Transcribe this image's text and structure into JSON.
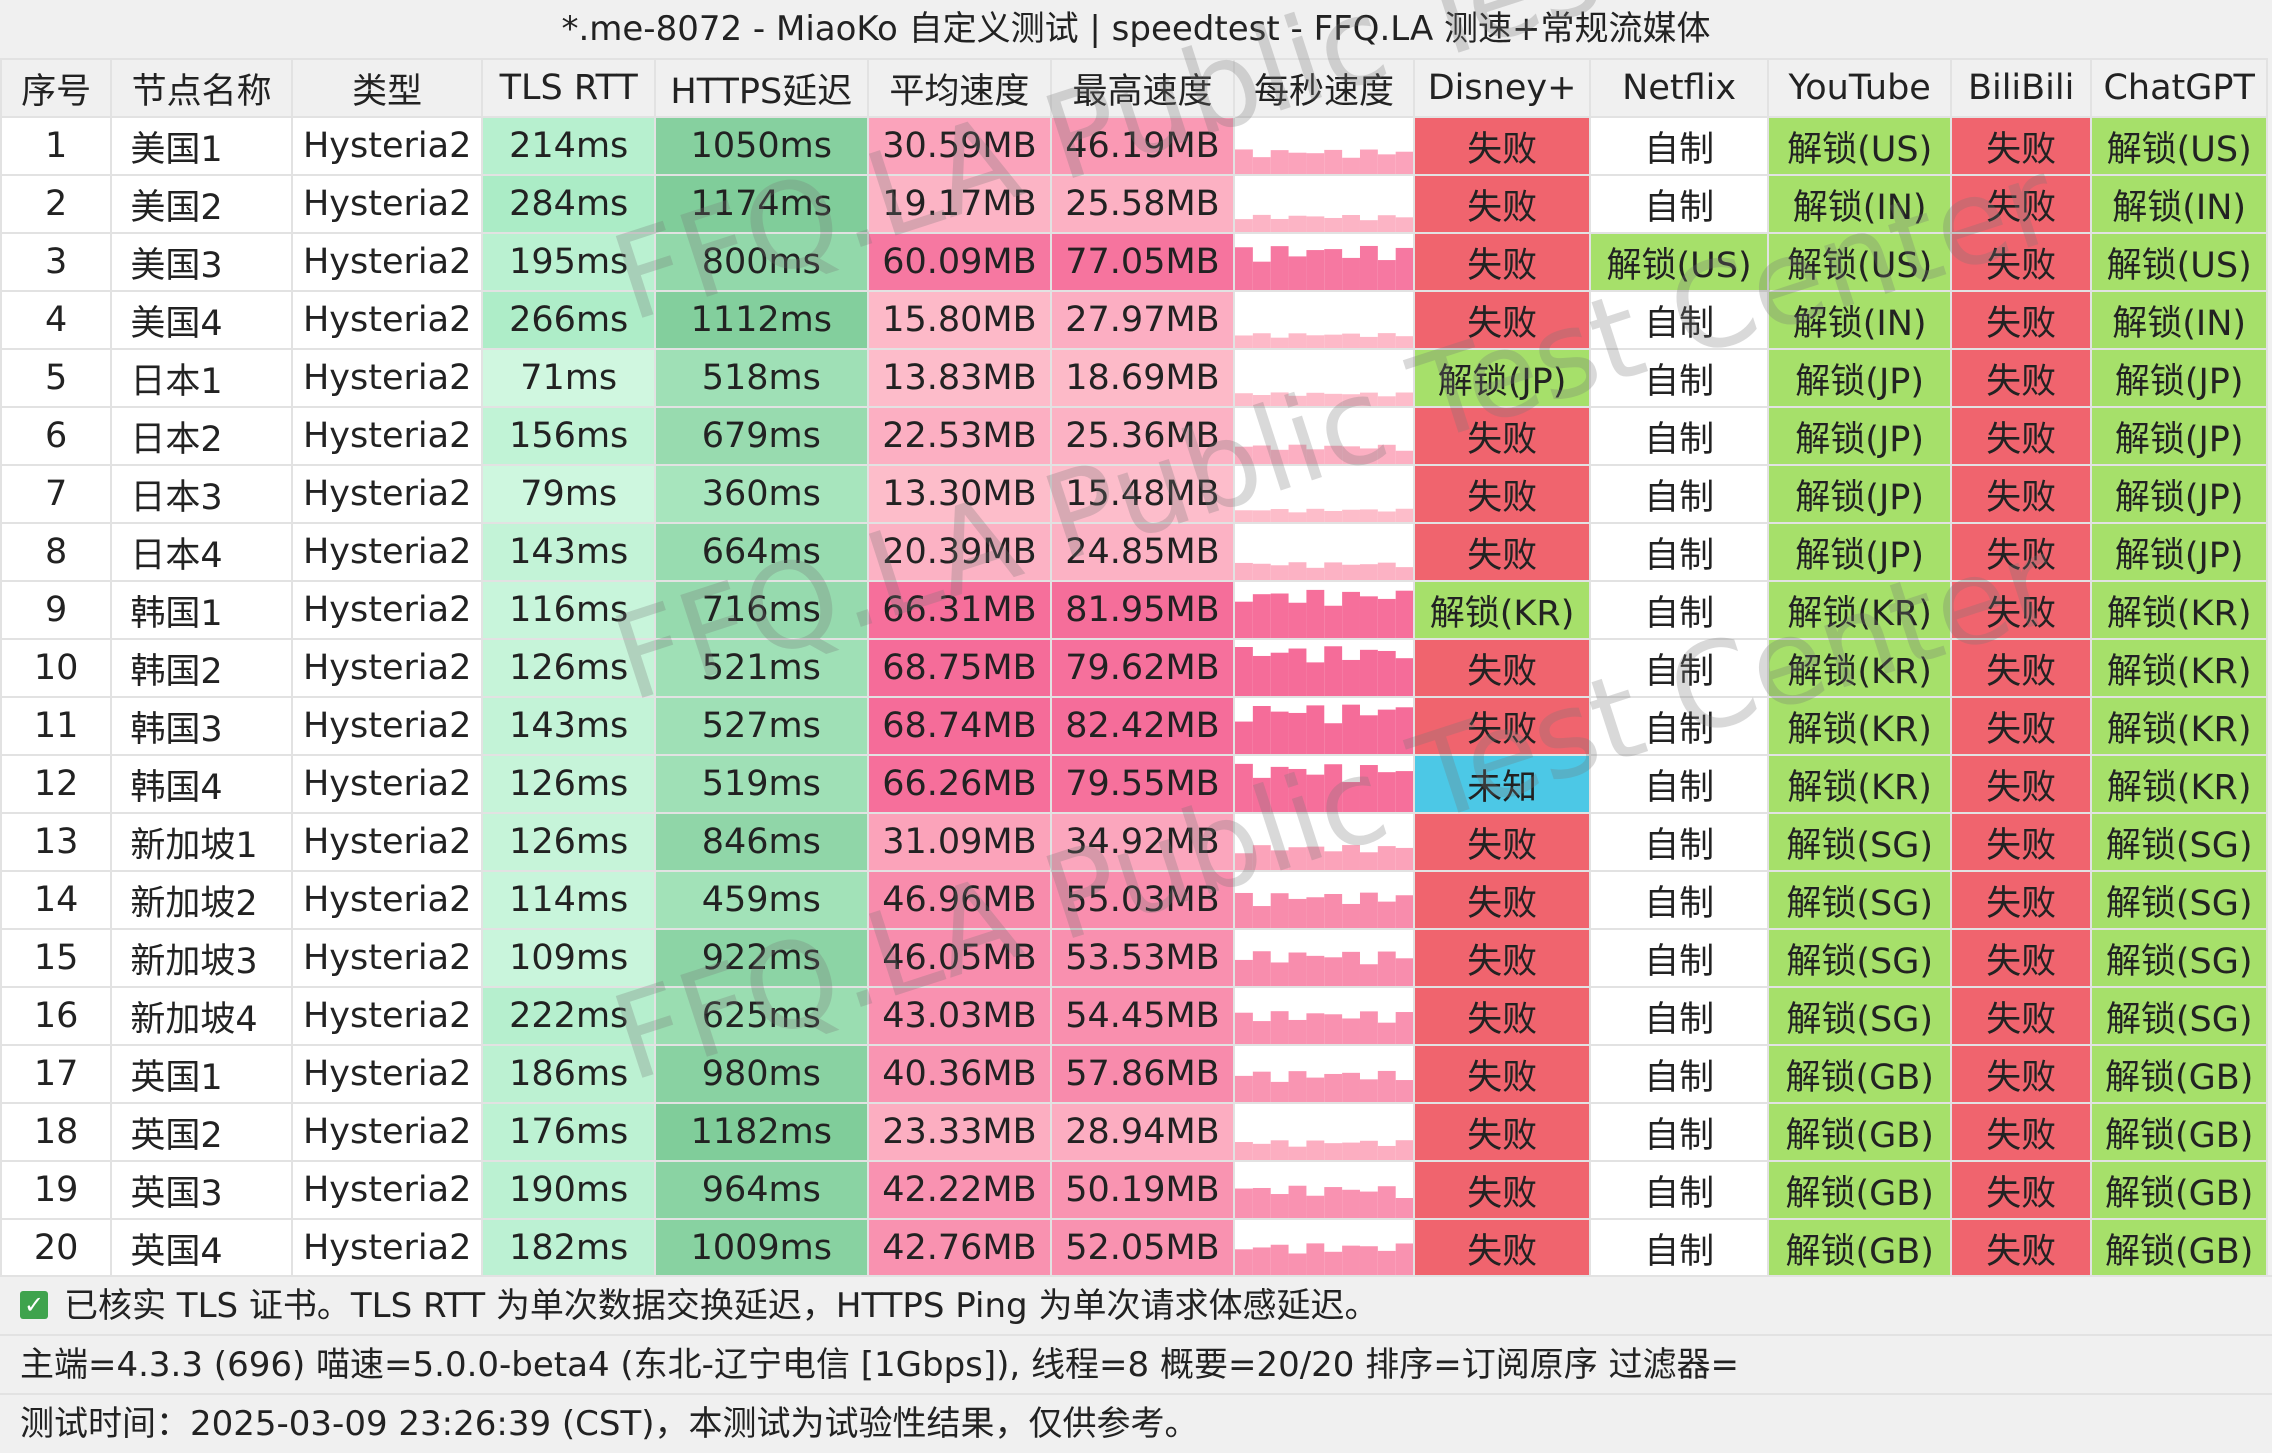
{
  "window": {
    "title": "*.me-8072 - MiaoKo 自定义测试 | speedtest - FFQ.LA 测速+常规流媒体"
  },
  "columns": [
    "序号",
    "节点名称",
    "类型",
    "TLS RTT",
    "HTTPS延迟",
    "平均速度",
    "最高速度",
    "每秒速度",
    "Disney+",
    "Netflix",
    "YouTube",
    "BiliBili",
    "ChatGPT"
  ],
  "rows": [
    {
      "idx": "1",
      "name": "美国1",
      "type": "Hysteria2",
      "rtt": "214ms",
      "https": "1050ms",
      "avg": "30.59MB",
      "max": "46.19MB",
      "disney": "失败",
      "netflix": "自制",
      "youtube": "解锁(US)",
      "bili": "失败",
      "gpt": "解锁(US)"
    },
    {
      "idx": "2",
      "name": "美国2",
      "type": "Hysteria2",
      "rtt": "284ms",
      "https": "1174ms",
      "avg": "19.17MB",
      "max": "25.58MB",
      "disney": "失败",
      "netflix": "自制",
      "youtube": "解锁(IN)",
      "bili": "失败",
      "gpt": "解锁(IN)"
    },
    {
      "idx": "3",
      "name": "美国3",
      "type": "Hysteria2",
      "rtt": "195ms",
      "https": "800ms",
      "avg": "60.09MB",
      "max": "77.05MB",
      "disney": "失败",
      "netflix": "解锁(US)",
      "youtube": "解锁(US)",
      "bili": "失败",
      "gpt": "解锁(US)"
    },
    {
      "idx": "4",
      "name": "美国4",
      "type": "Hysteria2",
      "rtt": "266ms",
      "https": "1112ms",
      "avg": "15.80MB",
      "max": "27.97MB",
      "disney": "失败",
      "netflix": "自制",
      "youtube": "解锁(IN)",
      "bili": "失败",
      "gpt": "解锁(IN)"
    },
    {
      "idx": "5",
      "name": "日本1",
      "type": "Hysteria2",
      "rtt": "71ms",
      "https": "518ms",
      "avg": "13.83MB",
      "max": "18.69MB",
      "disney": "解锁(JP)",
      "netflix": "自制",
      "youtube": "解锁(JP)",
      "bili": "失败",
      "gpt": "解锁(JP)"
    },
    {
      "idx": "6",
      "name": "日本2",
      "type": "Hysteria2",
      "rtt": "156ms",
      "https": "679ms",
      "avg": "22.53MB",
      "max": "25.36MB",
      "disney": "失败",
      "netflix": "自制",
      "youtube": "解锁(JP)",
      "bili": "失败",
      "gpt": "解锁(JP)"
    },
    {
      "idx": "7",
      "name": "日本3",
      "type": "Hysteria2",
      "rtt": "79ms",
      "https": "360ms",
      "avg": "13.30MB",
      "max": "15.48MB",
      "disney": "失败",
      "netflix": "自制",
      "youtube": "解锁(JP)",
      "bili": "失败",
      "gpt": "解锁(JP)"
    },
    {
      "idx": "8",
      "name": "日本4",
      "type": "Hysteria2",
      "rtt": "143ms",
      "https": "664ms",
      "avg": "20.39MB",
      "max": "24.85MB",
      "disney": "失败",
      "netflix": "自制",
      "youtube": "解锁(JP)",
      "bili": "失败",
      "gpt": "解锁(JP)"
    },
    {
      "idx": "9",
      "name": "韩国1",
      "type": "Hysteria2",
      "rtt": "116ms",
      "https": "716ms",
      "avg": "66.31MB",
      "max": "81.95MB",
      "disney": "解锁(KR)",
      "netflix": "自制",
      "youtube": "解锁(KR)",
      "bili": "失败",
      "gpt": "解锁(KR)"
    },
    {
      "idx": "10",
      "name": "韩国2",
      "type": "Hysteria2",
      "rtt": "126ms",
      "https": "521ms",
      "avg": "68.75MB",
      "max": "79.62MB",
      "disney": "失败",
      "netflix": "自制",
      "youtube": "解锁(KR)",
      "bili": "失败",
      "gpt": "解锁(KR)"
    },
    {
      "idx": "11",
      "name": "韩国3",
      "type": "Hysteria2",
      "rtt": "143ms",
      "https": "527ms",
      "avg": "68.74MB",
      "max": "82.42MB",
      "disney": "失败",
      "netflix": "自制",
      "youtube": "解锁(KR)",
      "bili": "失败",
      "gpt": "解锁(KR)"
    },
    {
      "idx": "12",
      "name": "韩国4",
      "type": "Hysteria2",
      "rtt": "126ms",
      "https": "519ms",
      "avg": "66.26MB",
      "max": "79.55MB",
      "disney": "未知",
      "netflix": "自制",
      "youtube": "解锁(KR)",
      "bili": "失败",
      "gpt": "解锁(KR)"
    },
    {
      "idx": "13",
      "name": "新加坡1",
      "type": "Hysteria2",
      "rtt": "126ms",
      "https": "846ms",
      "avg": "31.09MB",
      "max": "34.92MB",
      "disney": "失败",
      "netflix": "自制",
      "youtube": "解锁(SG)",
      "bili": "失败",
      "gpt": "解锁(SG)"
    },
    {
      "idx": "14",
      "name": "新加坡2",
      "type": "Hysteria2",
      "rtt": "114ms",
      "https": "459ms",
      "avg": "46.96MB",
      "max": "55.03MB",
      "disney": "失败",
      "netflix": "自制",
      "youtube": "解锁(SG)",
      "bili": "失败",
      "gpt": "解锁(SG)"
    },
    {
      "idx": "15",
      "name": "新加坡3",
      "type": "Hysteria2",
      "rtt": "109ms",
      "https": "922ms",
      "avg": "46.05MB",
      "max": "53.53MB",
      "disney": "失败",
      "netflix": "自制",
      "youtube": "解锁(SG)",
      "bili": "失败",
      "gpt": "解锁(SG)"
    },
    {
      "idx": "16",
      "name": "新加坡4",
      "type": "Hysteria2",
      "rtt": "222ms",
      "https": "625ms",
      "avg": "43.03MB",
      "max": "54.45MB",
      "disney": "失败",
      "netflix": "自制",
      "youtube": "解锁(SG)",
      "bili": "失败",
      "gpt": "解锁(SG)"
    },
    {
      "idx": "17",
      "name": "英国1",
      "type": "Hysteria2",
      "rtt": "186ms",
      "https": "980ms",
      "avg": "40.36MB",
      "max": "57.86MB",
      "disney": "失败",
      "netflix": "自制",
      "youtube": "解锁(GB)",
      "bili": "失败",
      "gpt": "解锁(GB)"
    },
    {
      "idx": "18",
      "name": "英国2",
      "type": "Hysteria2",
      "rtt": "176ms",
      "https": "1182ms",
      "avg": "23.33MB",
      "max": "28.94MB",
      "disney": "失败",
      "netflix": "自制",
      "youtube": "解锁(GB)",
      "bili": "失败",
      "gpt": "解锁(GB)"
    },
    {
      "idx": "19",
      "name": "英国3",
      "type": "Hysteria2",
      "rtt": "190ms",
      "https": "964ms",
      "avg": "42.22MB",
      "max": "50.19MB",
      "disney": "失败",
      "netflix": "自制",
      "youtube": "解锁(GB)",
      "bili": "失败",
      "gpt": "解锁(GB)"
    },
    {
      "idx": "20",
      "name": "英国4",
      "type": "Hysteria2",
      "rtt": "182ms",
      "https": "1009ms",
      "avg": "42.76MB",
      "max": "52.05MB",
      "disney": "失败",
      "netflix": "自制",
      "youtube": "解锁(GB)",
      "bili": "失败",
      "gpt": "解锁(GB)"
    }
  ],
  "footer": {
    "verified": "已核实 TLS 证书。TLS RTT 为单次数据交换延迟，HTTPS Ping 为单次请求体感延迟。",
    "info": "主端=4.3.3 (696) 喵速=5.0.0-beta4 (东北-辽宁电信 [1Gbps]), 线程=8 概要=20/20 排序=订阅原序 过滤器=",
    "time": "测试时间：2025-03-09 23:26:39 (CST)，本测试为试验性结果，仅供参考。"
  },
  "watermark": "FFQ.LA Public Test Center",
  "colors": {
    "fail": "#f0646e",
    "unlock": "#a6e06a",
    "unknown": "#4cc8e6",
    "rtt_light": "#c6f5dc",
    "https_dark": "#7fcc99",
    "speed_pink_light": "#ffd0d6",
    "speed_pink_dark": "#f56a98"
  }
}
